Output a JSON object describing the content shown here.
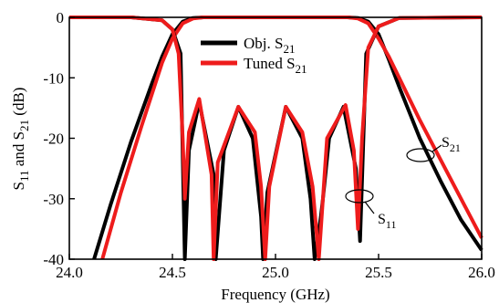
{
  "chart_data": {
    "type": "line",
    "xlabel": "Frequency (GHz)",
    "ylabel": {
      "prefix": "S",
      "sub1": "11",
      "mid": " and S",
      "sub2": "21",
      "suffix": " (dB)"
    },
    "xlim": [
      24.0,
      26.0
    ],
    "ylim": [
      -40,
      0
    ],
    "xticks": [
      24.0,
      24.5,
      25.0,
      25.5,
      26.0
    ],
    "yticks": [
      0,
      -10,
      -20,
      -30,
      -40
    ],
    "grid": false,
    "legend_position": "top-center",
    "colors": {
      "obj": "#000000",
      "tuned": "#ee1c1c"
    },
    "legend": [
      {
        "text": "Obj. S",
        "sub": "21",
        "color": "#000000"
      },
      {
        "text": "Tuned S",
        "sub": "21",
        "color": "#ee1c1c"
      }
    ],
    "annotations": [
      {
        "text": "S",
        "sub": "21"
      },
      {
        "text": "S",
        "sub": "11"
      }
    ],
    "series": [
      {
        "name": "Obj. S21",
        "color": "#000000",
        "x": [
          24.12,
          24.2,
          24.3,
          24.4,
          24.45,
          24.5,
          24.55,
          24.6,
          24.65,
          25.35,
          25.4,
          25.45,
          25.5,
          25.55,
          25.6,
          25.7,
          25.8,
          25.9,
          26.0
        ],
        "y": [
          -40,
          -31,
          -20.5,
          -11,
          -6.5,
          -2.8,
          -0.7,
          -0.1,
          0,
          0,
          -0.1,
          -0.7,
          -2.8,
          -7,
          -11.5,
          -20,
          -27,
          -33.5,
          -38.5
        ]
      },
      {
        "name": "Tuned S21",
        "color": "#ee1c1c",
        "x": [
          24.16,
          24.25,
          24.35,
          24.45,
          24.5,
          24.55,
          24.6,
          24.65,
          25.35,
          25.4,
          25.45,
          25.5,
          25.55,
          25.6,
          25.7,
          25.8,
          25.9,
          26.0
        ],
        "y": [
          -40,
          -29,
          -18,
          -7.5,
          -3.5,
          -1,
          -0.2,
          0,
          0,
          -0.2,
          -1,
          -3.5,
          -6.5,
          -10,
          -17,
          -23.5,
          -30,
          -36.5
        ]
      },
      {
        "name": "Obj. S11",
        "color": "#000000",
        "x": [
          24.0,
          24.3,
          24.45,
          24.5,
          24.54,
          24.56,
          24.58,
          24.63,
          24.7,
          24.71,
          24.75,
          24.82,
          24.89,
          24.93,
          24.94,
          24.96,
          25.05,
          25.13,
          25.17,
          25.19,
          25.22,
          25.23,
          25.26,
          25.33,
          25.39,
          25.41,
          25.44,
          25.5,
          25.6,
          26.0
        ],
        "y": [
          0,
          0,
          -0.5,
          -2,
          -6,
          -40,
          -22,
          -14,
          -26,
          -40,
          -22,
          -14.8,
          -20,
          -33,
          -40,
          -29,
          -14.8,
          -20,
          -30,
          -40,
          -33,
          -30,
          -20,
          -14.8,
          -25,
          -37,
          -6,
          -1.5,
          -0.1,
          0
        ]
      },
      {
        "name": "Tuned S11",
        "color": "#ee1c1c",
        "x": [
          24.0,
          24.3,
          24.45,
          24.5,
          24.53,
          24.55,
          24.56,
          24.58,
          24.63,
          24.69,
          24.7,
          24.72,
          24.82,
          24.9,
          24.93,
          24.95,
          24.97,
          25.05,
          25.13,
          25.18,
          25.21,
          25.23,
          25.25,
          25.34,
          25.38,
          25.4,
          25.42,
          25.45,
          25.5,
          25.6,
          26.0
        ],
        "y": [
          0,
          0,
          -0.5,
          -2,
          -6,
          -20,
          -30,
          -19,
          -13.5,
          -26,
          -40,
          -24,
          -14.8,
          -19,
          -28,
          -40,
          -28,
          -14.8,
          -19,
          -28,
          -40,
          -30,
          -20,
          -14.5,
          -22,
          -35,
          -20,
          -5,
          -1.5,
          -0.1,
          0
        ]
      }
    ]
  }
}
